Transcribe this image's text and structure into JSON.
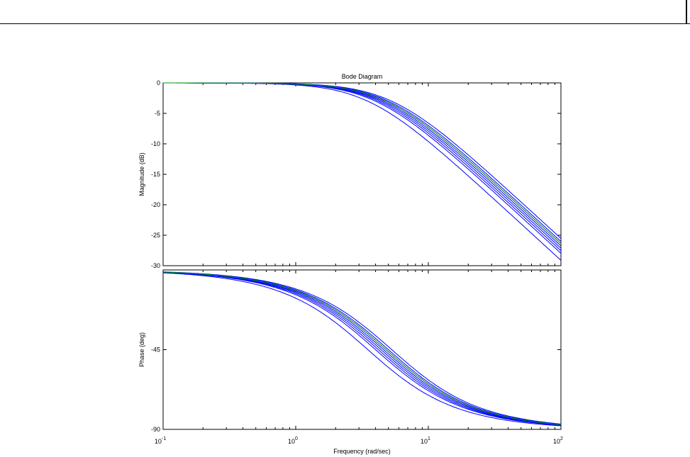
{
  "chart_data": {
    "type": "line",
    "title": "Bode Diagram",
    "xlabel": "Frequency  (rad/sec)",
    "xscale": "log",
    "xlim": [
      0.1,
      100
    ],
    "x_tick_labels": [
      {
        "base": "10",
        "exp": "-1"
      },
      {
        "base": "10",
        "exp": "0"
      },
      {
        "base": "10",
        "exp": "1"
      },
      {
        "base": "10",
        "exp": "2"
      }
    ],
    "grid": false,
    "colors": {
      "series": "#0000ff",
      "nominal": "#00a000",
      "axes": "#000000"
    },
    "series_model": {
      "form": "first-order low-pass, magnitude 1/sqrt(1+(w/wc)^2), phase -atan(w/wc)",
      "corner_frequencies": [
        3.5,
        4.0,
        4.2,
        4.4,
        4.6,
        4.8,
        5.0,
        5.3
      ],
      "nominal_corner_frequency": 4.8
    },
    "panels": [
      {
        "name": "magnitude",
        "ylabel": "Magnitude (dB)",
        "ylim": [
          -30,
          0
        ],
        "y_ticks": [
          0,
          -5,
          -10,
          -15,
          -20,
          -25,
          -30
        ],
        "y_tick_labels": [
          "0",
          "-5",
          "-10",
          "-15",
          "-20",
          "-25",
          "-30"
        ]
      },
      {
        "name": "phase",
        "ylabel": "Phase (deg)",
        "ylim": [
          -90,
          0
        ],
        "y_ticks": [
          -45,
          -90
        ],
        "y_tick_labels": [
          "-45",
          "-90"
        ]
      }
    ]
  }
}
